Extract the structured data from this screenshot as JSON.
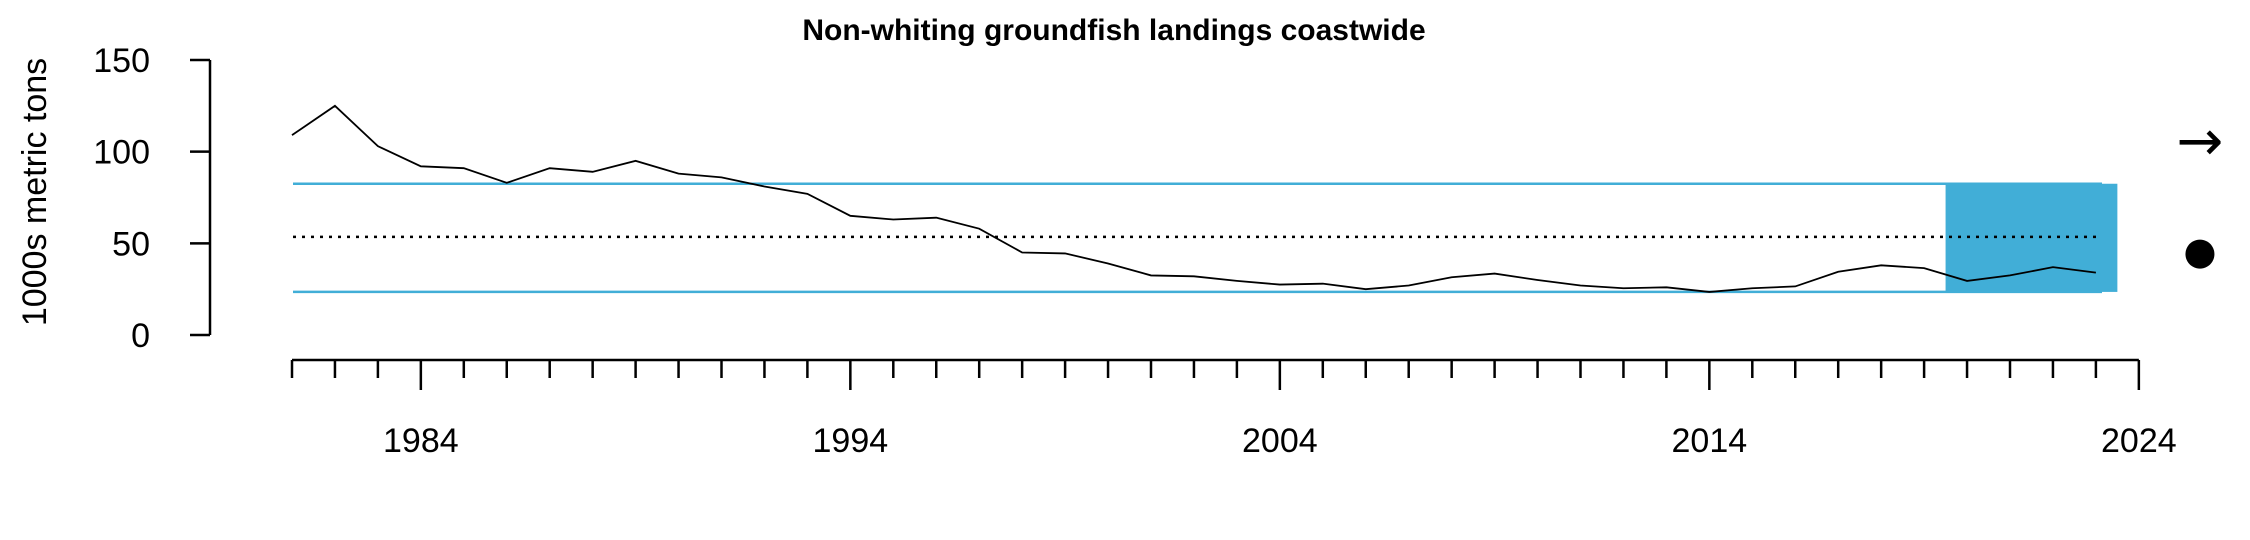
{
  "chart_data": {
    "type": "line",
    "title": "Non-whiting groundfish landings coastwide",
    "xlabel": "",
    "ylabel": "1000s metric tons",
    "xlim": [
      1981,
      2024
    ],
    "ylim": [
      0,
      150
    ],
    "yticks": [
      0,
      50,
      100,
      150
    ],
    "xticks_labeled": [
      1984,
      1994,
      2004,
      2014,
      2024
    ],
    "x": [
      1981,
      1982,
      1983,
      1984,
      1985,
      1986,
      1987,
      1988,
      1989,
      1990,
      1991,
      1992,
      1993,
      1994,
      1995,
      1996,
      1997,
      1998,
      1999,
      2000,
      2001,
      2002,
      2003,
      2004,
      2005,
      2006,
      2007,
      2008,
      2009,
      2010,
      2011,
      2012,
      2013,
      2014,
      2015,
      2016,
      2017,
      2018,
      2019,
      2020,
      2021,
      2022,
      2023
    ],
    "series": [
      {
        "values": [
          109,
          125,
          103,
          92,
          91,
          83,
          91,
          89,
          95,
          88,
          86,
          81,
          77,
          65,
          63,
          64,
          58,
          45,
          44.5,
          39,
          32.5,
          32,
          29.5,
          27.5,
          28,
          25,
          27,
          31.5,
          33.5,
          30,
          27,
          25.5,
          26,
          23.5,
          25.5,
          26.5,
          34.5,
          38,
          36.5,
          29.5,
          32.5,
          37,
          34
        ],
        "color": "#000000"
      }
    ],
    "mean_line": 53.5,
    "sd_band": [
      23.5,
      82.5
    ],
    "band_color": "#41AED7",
    "highlight_period": [
      2019.5,
      2023.5
    ],
    "trend_symbol": "→",
    "status_symbol": "●"
  }
}
